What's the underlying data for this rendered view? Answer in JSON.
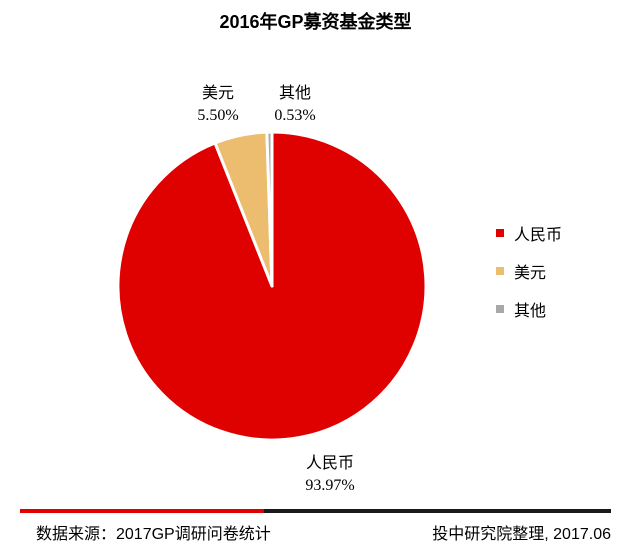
{
  "chart_data": {
    "type": "pie",
    "title": "2016年GP募资基金类型",
    "slices": [
      {
        "name": "人民币",
        "value": 93.97,
        "label": "93.97%",
        "color": "#df0000"
      },
      {
        "name": "美元",
        "value": 5.5,
        "label": "5.50%",
        "color": "#ecbd6f"
      },
      {
        "name": "其他",
        "value": 0.53,
        "label": "0.53%",
        "color": "#a8a8a8"
      }
    ],
    "legend": {
      "position": "right",
      "items": [
        "人民币",
        "美元",
        "其他"
      ]
    }
  },
  "footer": {
    "source": "数据来源：2017GP调研问卷统计",
    "credit": "投中研究院整理, 2017.06"
  }
}
